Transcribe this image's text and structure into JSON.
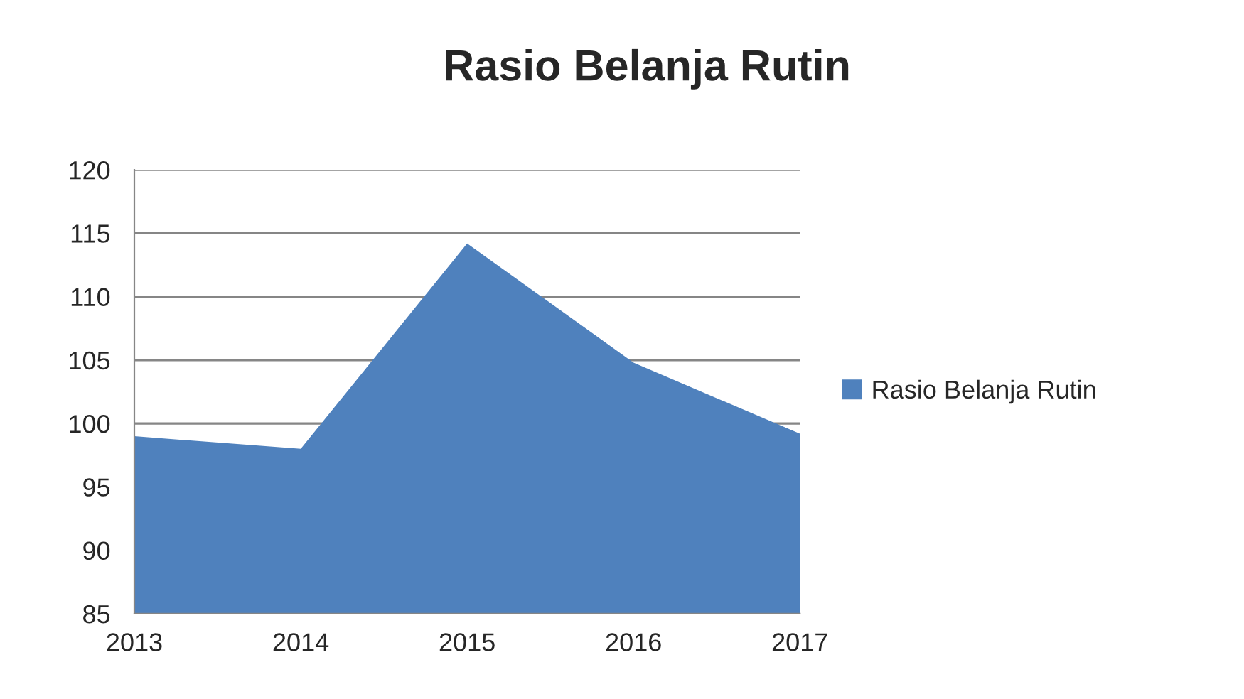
{
  "chart_data": {
    "type": "area",
    "title": "Rasio Belanja Rutin",
    "categories": [
      "2013",
      "2014",
      "2015",
      "2016",
      "2017"
    ],
    "series": [
      {
        "name": "Rasio Belanja Rutin",
        "color": "#4f81bd",
        "values": [
          99.0,
          98.0,
          114.2,
          104.8,
          99.2
        ]
      }
    ],
    "ylim": [
      85,
      120
    ],
    "yticks": [
      85,
      90,
      95,
      100,
      105,
      110,
      115,
      120
    ],
    "grid": "y",
    "legend": "right"
  }
}
